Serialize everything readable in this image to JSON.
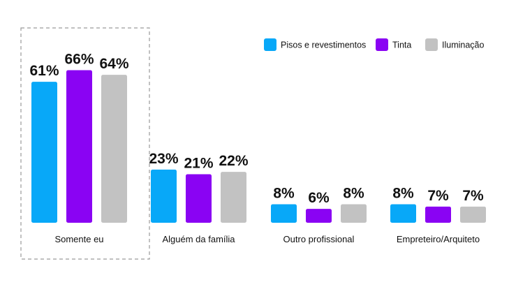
{
  "chart_data": {
    "type": "bar",
    "title": "",
    "xlabel": "",
    "ylabel": "",
    "ylim": [
      0,
      70
    ],
    "grid": false,
    "legend_position": "top-right",
    "highlighted_category": "Somente eu",
    "categories": [
      "Somente eu",
      "Alguém da família",
      "Outro profissional",
      "Empreteiro/Arquiteto"
    ],
    "series": [
      {
        "name": "Pisos e revestimentos",
        "color": "#08A8F8",
        "values": [
          61,
          23,
          8,
          8
        ],
        "labels": [
          "61%",
          "23%",
          "8%",
          "8%"
        ]
      },
      {
        "name": "Tinta",
        "color": "#8A03F3",
        "values": [
          66,
          21,
          6,
          7
        ],
        "labels": [
          "66%",
          "21%",
          "6%",
          "7%"
        ]
      },
      {
        "name": "Iluminação",
        "color": "#C2C2C2",
        "values": [
          64,
          22,
          8,
          7
        ],
        "labels": [
          "64%",
          "22%",
          "8%",
          "7%"
        ]
      }
    ]
  }
}
